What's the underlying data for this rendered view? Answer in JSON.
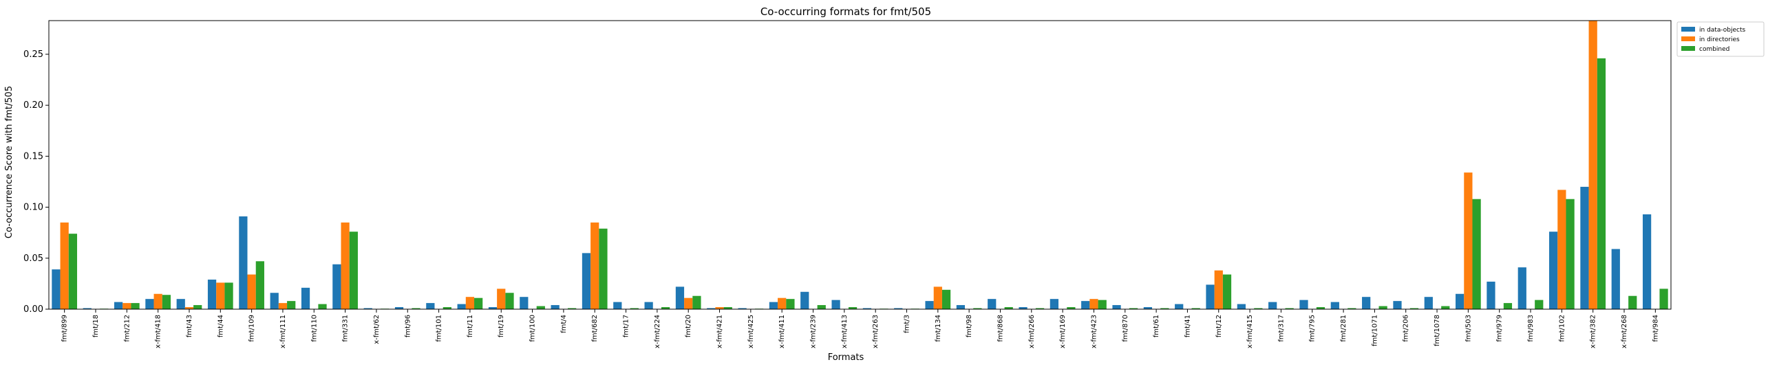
{
  "chart_data": {
    "type": "bar",
    "title": "Co-occurring formats for fmt/505",
    "xlabel": "Formats",
    "ylabel": "Co-occurrence Score with fmt/505",
    "ylim": [
      0,
      0.283
    ],
    "yticks": [
      0.0,
      0.05,
      0.1,
      0.15,
      0.2,
      0.25
    ],
    "ytick_labels": [
      "0.00",
      "0.05",
      "0.10",
      "0.15",
      "0.20",
      "0.25"
    ],
    "grid": false,
    "legend_position": "outside top-right",
    "categories": [
      "fmt/899",
      "fmt/18",
      "fmt/212",
      "x-fmt/418",
      "fmt/43",
      "fmt/44",
      "fmt/109",
      "x-fmt/111",
      "fmt/110",
      "fmt/331",
      "x-fmt/62",
      "fmt/96",
      "fmt/101",
      "fmt/11",
      "fmt/19",
      "fmt/100",
      "fmt/4",
      "fmt/682",
      "fmt/17",
      "x-fmt/224",
      "fmt/20",
      "x-fmt/421",
      "x-fmt/425",
      "x-fmt/411",
      "x-fmt/239",
      "x-fmt/413",
      "x-fmt/263",
      "fmt/3",
      "fmt/134",
      "fmt/98",
      "fmt/868",
      "x-fmt/266",
      "x-fmt/169",
      "x-fmt/423",
      "fmt/870",
      "fmt/61",
      "fmt/41",
      "fmt/12",
      "x-fmt/415",
      "fmt/317",
      "fmt/795",
      "fmt/281",
      "fmt/1071",
      "fmt/206",
      "fmt/1078",
      "fmt/503",
      "fmt/979",
      "fmt/983",
      "fmt/102",
      "x-fmt/382",
      "x-fmt/268",
      "fmt/984"
    ],
    "series": [
      {
        "name": "in data-objects",
        "color": "#1f77b4",
        "values": [
          0.039,
          0.001,
          0.007,
          0.01,
          0.01,
          0.029,
          0.091,
          0.016,
          0.021,
          0.044,
          0.001,
          0.002,
          0.006,
          0.005,
          0.002,
          0.012,
          0.004,
          0.055,
          0.007,
          0.007,
          0.022,
          0.001,
          0.001,
          0.007,
          0.017,
          0.009,
          0.001,
          0.001,
          0.008,
          0.004,
          0.01,
          0.002,
          0.01,
          0.008,
          0.004,
          0.002,
          0.005,
          0.024,
          0.005,
          0.007,
          0.009,
          0.007,
          0.012,
          0.008,
          0.012,
          0.015,
          0.027,
          0.041,
          0.076,
          0.12,
          0.059,
          0.093
        ]
      },
      {
        "name": "in directories",
        "color": "#ff7f0e",
        "values": [
          0.085,
          0.0,
          0.006,
          0.015,
          0.002,
          0.026,
          0.034,
          0.006,
          0.0,
          0.085,
          0.0,
          0.0,
          0.0,
          0.012,
          0.02,
          0.0,
          0.0,
          0.085,
          0.0,
          0.0,
          0.011,
          0.002,
          0.0,
          0.011,
          0.0,
          0.0,
          0.0,
          0.0,
          0.022,
          0.0,
          0.0,
          0.0,
          0.0,
          0.01,
          0.0,
          0.0,
          0.0,
          0.038,
          0.0,
          0.0,
          0.0,
          0.0,
          0.0,
          0.0,
          0.0,
          0.134,
          0.0,
          0.0,
          0.117,
          0.283,
          0.0,
          0.0
        ]
      },
      {
        "name": "combined",
        "color": "#2ca02c",
        "values": [
          0.074,
          0.0005,
          0.006,
          0.014,
          0.004,
          0.026,
          0.047,
          0.008,
          0.005,
          0.076,
          0.0005,
          0.001,
          0.002,
          0.011,
          0.016,
          0.003,
          0.001,
          0.079,
          0.001,
          0.002,
          0.013,
          0.002,
          0.0005,
          0.01,
          0.004,
          0.002,
          0.0005,
          0.0005,
          0.019,
          0.001,
          0.002,
          0.001,
          0.002,
          0.009,
          0.001,
          0.001,
          0.001,
          0.034,
          0.001,
          0.001,
          0.002,
          0.001,
          0.003,
          0.001,
          0.003,
          0.108,
          0.006,
          0.009,
          0.108,
          0.246,
          0.013,
          0.02
        ]
      }
    ]
  }
}
